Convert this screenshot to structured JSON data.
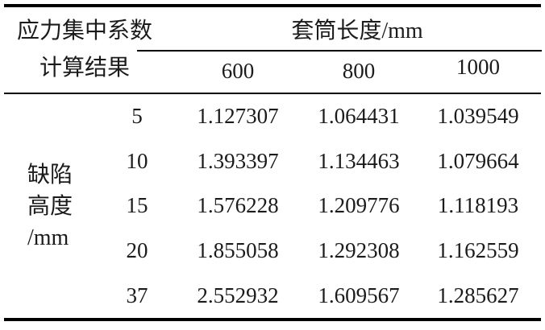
{
  "table": {
    "row_header": {
      "line1": "应力集中系数",
      "line2": "计算结果"
    },
    "col_group_header": "套筒长度/mm",
    "col_headers": [
      "600",
      "800",
      "1000"
    ],
    "row_group_label": [
      "缺陷",
      "高度",
      "/mm"
    ],
    "rows": [
      {
        "height": "5",
        "values": [
          "1.127307",
          "1.064431",
          "1.039549"
        ]
      },
      {
        "height": "10",
        "values": [
          "1.393397",
          "1.134463",
          "1.079664"
        ]
      },
      {
        "height": "15",
        "values": [
          "1.576228",
          "1.209776",
          "1.118193"
        ]
      },
      {
        "height": "20",
        "values": [
          "1.855058",
          "1.292308",
          "1.162559"
        ]
      },
      {
        "height": "37",
        "values": [
          "2.552932",
          "1.609567",
          "1.285627"
        ]
      }
    ]
  },
  "colors": {
    "text": "#1b1b1b",
    "rule": "#000000",
    "background": "#ffffff"
  },
  "chart_data": {
    "type": "table",
    "title": "应力集中系数计算结果",
    "row_variable": "缺陷高度/mm",
    "column_variable": "套筒长度/mm",
    "columns": [
      600,
      800,
      1000
    ],
    "rows": [
      5,
      10,
      15,
      20,
      37
    ],
    "values": [
      [
        1.127307,
        1.064431,
        1.039549
      ],
      [
        1.393397,
        1.134463,
        1.079664
      ],
      [
        1.576228,
        1.209776,
        1.118193
      ],
      [
        1.855058,
        1.292308,
        1.162559
      ],
      [
        2.552932,
        1.609567,
        1.285627
      ]
    ]
  }
}
